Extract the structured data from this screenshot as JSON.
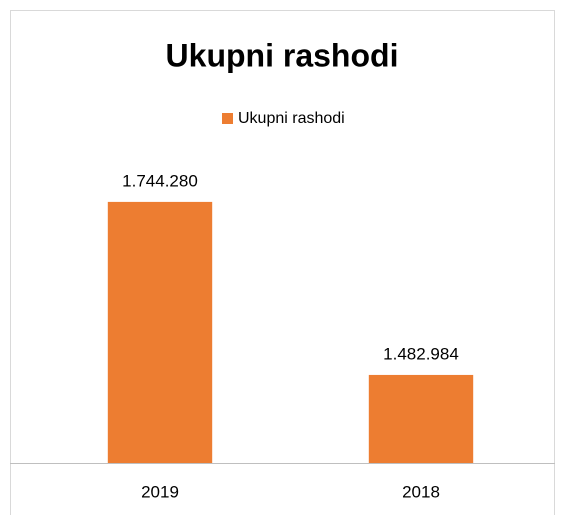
{
  "chart_data": {
    "type": "bar",
    "title": "Ukupni rashodi",
    "categories": [
      "2019",
      "2018"
    ],
    "series": [
      {
        "name": "Ukupni rashodi",
        "color": "#ed7d31",
        "values": [
          1744280,
          1482984
        ],
        "value_labels": [
          "1.744.280",
          "1.482.984"
        ]
      }
    ],
    "ylim": [
      1350000,
      1800000
    ],
    "legend": "top"
  }
}
